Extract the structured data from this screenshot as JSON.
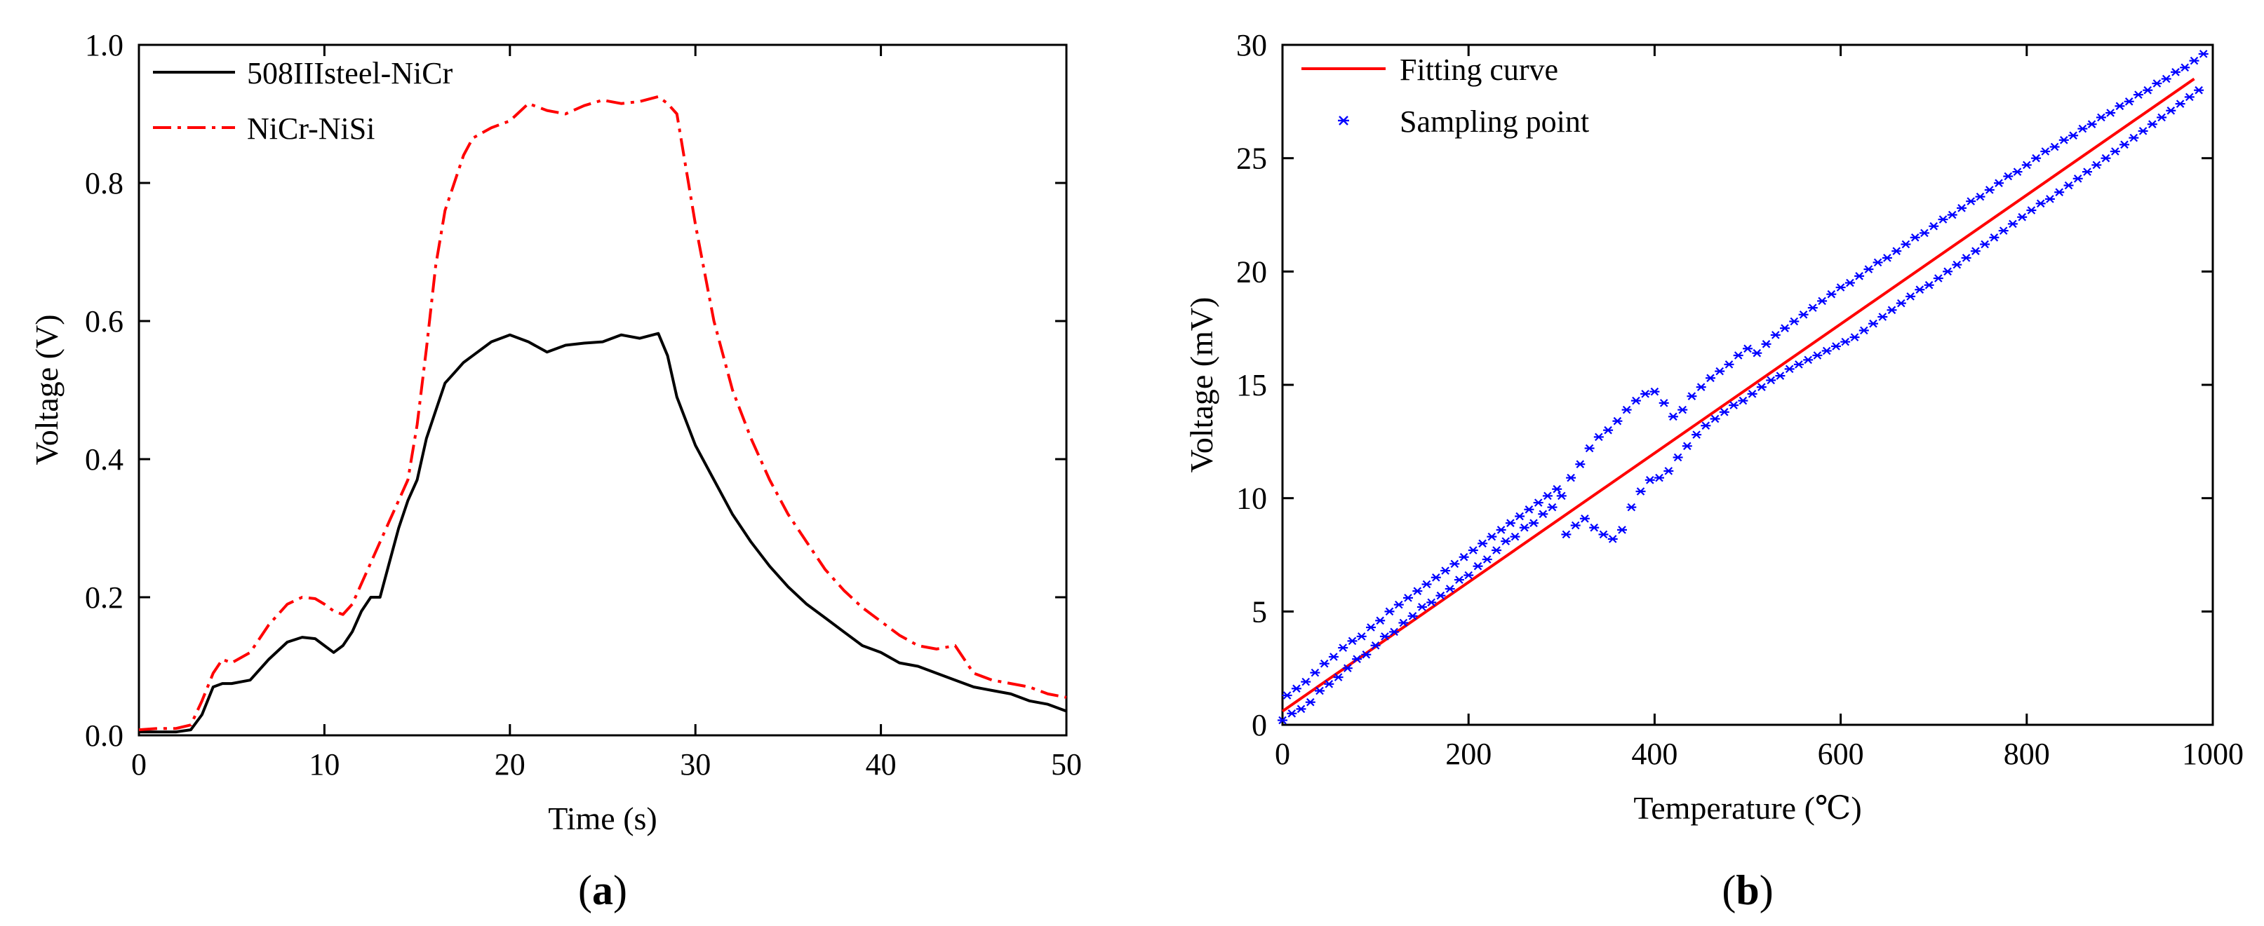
{
  "chart_data": [
    {
      "type": "line",
      "panel_label": "(a)",
      "title": "",
      "xlabel": "Time (s)",
      "ylabel": "Voltage (V)",
      "xlim": [
        0,
        50
      ],
      "ylim": [
        0,
        1.0
      ],
      "xticks": [
        0,
        10,
        20,
        30,
        40,
        50
      ],
      "xtick_labels": [
        "0",
        "10",
        "20",
        "30",
        "40",
        "50"
      ],
      "yticks": [
        0,
        0.2,
        0.4,
        0.6,
        0.8,
        1.0
      ],
      "ytick_labels": [
        "0.0",
        "0.2",
        "0.4",
        "0.6",
        "0.8",
        "1.0"
      ],
      "legend_position": "top-left",
      "series": [
        {
          "name": "508IIIsteel-NiCr",
          "color": "#000000",
          "dash": "solid",
          "x": [
            0,
            1,
            2,
            2.8,
            3.4,
            4,
            4.5,
            5,
            6,
            7,
            8,
            8.8,
            9.5,
            10,
            10.5,
            11,
            11.5,
            12,
            12.5,
            13,
            13.5,
            14,
            14.5,
            15,
            15.5,
            16,
            16.5,
            17,
            17.5,
            18,
            19,
            20,
            21,
            22,
            23,
            24,
            25,
            26,
            27,
            28,
            28.5,
            29,
            30,
            31,
            32,
            33,
            34,
            35,
            36,
            37,
            38,
            39,
            40,
            41,
            42,
            43,
            44,
            45,
            46,
            47,
            48,
            49,
            50
          ],
          "values": [
            0.005,
            0.005,
            0.005,
            0.008,
            0.03,
            0.07,
            0.075,
            0.075,
            0.08,
            0.11,
            0.135,
            0.142,
            0.14,
            0.13,
            0.12,
            0.13,
            0.15,
            0.18,
            0.2,
            0.2,
            0.25,
            0.3,
            0.34,
            0.37,
            0.43,
            0.47,
            0.51,
            0.525,
            0.54,
            0.55,
            0.57,
            0.58,
            0.57,
            0.555,
            0.565,
            0.568,
            0.57,
            0.58,
            0.575,
            0.582,
            0.55,
            0.49,
            0.42,
            0.37,
            0.32,
            0.28,
            0.245,
            0.215,
            0.19,
            0.17,
            0.15,
            0.13,
            0.12,
            0.105,
            0.1,
            0.09,
            0.08,
            0.07,
            0.065,
            0.06,
            0.05,
            0.045,
            0.035
          ]
        },
        {
          "name": "NiCr-NiSi",
          "color": "#ff0000",
          "dash": "dashdot",
          "x": [
            0,
            1,
            2,
            2.8,
            3.4,
            4,
            4.5,
            5,
            6,
            7,
            8,
            8.8,
            9.5,
            10,
            10.5,
            11,
            11.5,
            12,
            12.5,
            13,
            13.5,
            14,
            14.5,
            15,
            15.5,
            16,
            16.5,
            17,
            17.5,
            18,
            19,
            20,
            21,
            22,
            23,
            24,
            25,
            26,
            27,
            28,
            28.5,
            29,
            30,
            31,
            32,
            33,
            34,
            35,
            36,
            37,
            38,
            39,
            40,
            41,
            42,
            43,
            44,
            45,
            46,
            47,
            48,
            49,
            50
          ],
          "values": [
            0.008,
            0.01,
            0.01,
            0.015,
            0.05,
            0.09,
            0.11,
            0.105,
            0.12,
            0.16,
            0.19,
            0.2,
            0.198,
            0.19,
            0.18,
            0.175,
            0.19,
            0.22,
            0.25,
            0.28,
            0.31,
            0.34,
            0.37,
            0.45,
            0.56,
            0.68,
            0.76,
            0.8,
            0.84,
            0.865,
            0.88,
            0.89,
            0.915,
            0.905,
            0.9,
            0.912,
            0.92,
            0.915,
            0.918,
            0.925,
            0.915,
            0.9,
            0.74,
            0.6,
            0.5,
            0.43,
            0.37,
            0.32,
            0.28,
            0.24,
            0.21,
            0.185,
            0.165,
            0.145,
            0.13,
            0.125,
            0.13,
            0.09,
            0.08,
            0.075,
            0.07,
            0.06,
            0.055
          ]
        }
      ]
    },
    {
      "type": "scatter",
      "panel_label": "(b)",
      "title": "",
      "xlabel": "Temperature (℃)",
      "ylabel": "Voltage (mV)",
      "xlim": [
        0,
        1000
      ],
      "ylim": [
        0,
        30
      ],
      "xticks": [
        0,
        200,
        400,
        600,
        800,
        1000
      ],
      "xtick_labels": [
        "0",
        "200",
        "400",
        "600",
        "800",
        "1000"
      ],
      "yticks": [
        0,
        5,
        10,
        15,
        20,
        25,
        30
      ],
      "ytick_labels": [
        "0",
        "5",
        "10",
        "15",
        "20",
        "25",
        "30"
      ],
      "legend_position": "top-left",
      "series": [
        {
          "name": "Fitting curve",
          "type": "line",
          "color": "#ff0000",
          "dash": "solid",
          "x": [
            0,
            980
          ],
          "values": [
            0.6,
            28.5
          ]
        },
        {
          "name": "Sampling point",
          "type": "scatter",
          "color": "#0000ff",
          "marker": "asterisk",
          "x": [
            0,
            10,
            20,
            30,
            40,
            50,
            60,
            70,
            80,
            90,
            100,
            110,
            120,
            130,
            140,
            150,
            160,
            170,
            180,
            190,
            200,
            210,
            220,
            230,
            240,
            250,
            260,
            270,
            280,
            290,
            300,
            310,
            320,
            330,
            340,
            350,
            360,
            370,
            380,
            390,
            400,
            410,
            420,
            430,
            440,
            450,
            460,
            470,
            480,
            490,
            500,
            510,
            520,
            530,
            540,
            550,
            560,
            570,
            580,
            590,
            600,
            610,
            620,
            630,
            640,
            650,
            660,
            670,
            680,
            690,
            700,
            710,
            720,
            730,
            740,
            750,
            760,
            770,
            780,
            790,
            800,
            810,
            820,
            830,
            840,
            850,
            860,
            870,
            880,
            890,
            900,
            910,
            920,
            930,
            940,
            950,
            960,
            970,
            980,
            990,
            5,
            15,
            25,
            35,
            45,
            55,
            65,
            75,
            85,
            95,
            105,
            115,
            125,
            135,
            145,
            155,
            165,
            175,
            185,
            195,
            205,
            215,
            225,
            235,
            245,
            255,
            265,
            275,
            285,
            295,
            305,
            315,
            325,
            335,
            345,
            355,
            365,
            375,
            385,
            395,
            405,
            415,
            425,
            435,
            445,
            455,
            465,
            475,
            485,
            495,
            505,
            515,
            525,
            535,
            545,
            555,
            565,
            575,
            585,
            595,
            605,
            615,
            625,
            635,
            645,
            655,
            665,
            675,
            685,
            695,
            705,
            715,
            725,
            735,
            745,
            755,
            765,
            775,
            785,
            795,
            805,
            815,
            825,
            835,
            845,
            855,
            865,
            875,
            885,
            895,
            905,
            915,
            925,
            935,
            945,
            955,
            965,
            975,
            985
          ],
          "values": [
            0.2,
            0.5,
            0.7,
            1.0,
            1.5,
            1.8,
            2.1,
            2.5,
            2.9,
            3.1,
            3.5,
            3.9,
            4.1,
            4.5,
            4.8,
            5.2,
            5.4,
            5.7,
            6.0,
            6.4,
            6.6,
            7.0,
            7.3,
            7.7,
            8.1,
            8.3,
            8.7,
            8.9,
            9.3,
            9.6,
            10.1,
            10.9,
            11.5,
            12.2,
            12.7,
            13.0,
            13.4,
            13.9,
            14.3,
            14.6,
            14.7,
            14.2,
            13.6,
            13.9,
            14.5,
            14.9,
            15.3,
            15.6,
            15.9,
            16.3,
            16.6,
            16.4,
            16.8,
            17.2,
            17.5,
            17.8,
            18.1,
            18.4,
            18.7,
            19.0,
            19.3,
            19.5,
            19.8,
            20.1,
            20.4,
            20.6,
            20.9,
            21.2,
            21.5,
            21.7,
            22.0,
            22.3,
            22.5,
            22.8,
            23.1,
            23.3,
            23.6,
            23.9,
            24.2,
            24.4,
            24.7,
            25.0,
            25.3,
            25.5,
            25.8,
            26.0,
            26.3,
            26.5,
            26.8,
            27.0,
            27.3,
            27.5,
            27.8,
            28.0,
            28.3,
            28.5,
            28.8,
            29.0,
            29.3,
            29.6,
            1.3,
            1.6,
            1.9,
            2.3,
            2.7,
            3.0,
            3.4,
            3.7,
            3.9,
            4.3,
            4.6,
            5.0,
            5.3,
            5.6,
            5.9,
            6.2,
            6.5,
            6.8,
            7.1,
            7.4,
            7.7,
            8.0,
            8.3,
            8.6,
            8.9,
            9.2,
            9.5,
            9.8,
            10.1,
            10.4,
            8.4,
            8.8,
            9.1,
            8.7,
            8.4,
            8.2,
            8.6,
            9.6,
            10.3,
            10.8,
            10.9,
            11.2,
            11.8,
            12.3,
            12.8,
            13.2,
            13.5,
            13.8,
            14.1,
            14.3,
            14.6,
            14.9,
            15.2,
            15.4,
            15.7,
            15.9,
            16.1,
            16.3,
            16.5,
            16.7,
            16.9,
            17.1,
            17.4,
            17.7,
            18.0,
            18.3,
            18.6,
            18.9,
            19.2,
            19.4,
            19.7,
            20.0,
            20.3,
            20.6,
            20.9,
            21.2,
            21.5,
            21.8,
            22.1,
            22.4,
            22.7,
            23.0,
            23.2,
            23.5,
            23.8,
            24.1,
            24.4,
            24.7,
            25.0,
            25.3,
            25.6,
            25.9,
            26.2,
            26.5,
            26.8,
            27.1,
            27.4,
            27.7,
            28.0
          ]
        }
      ]
    }
  ]
}
